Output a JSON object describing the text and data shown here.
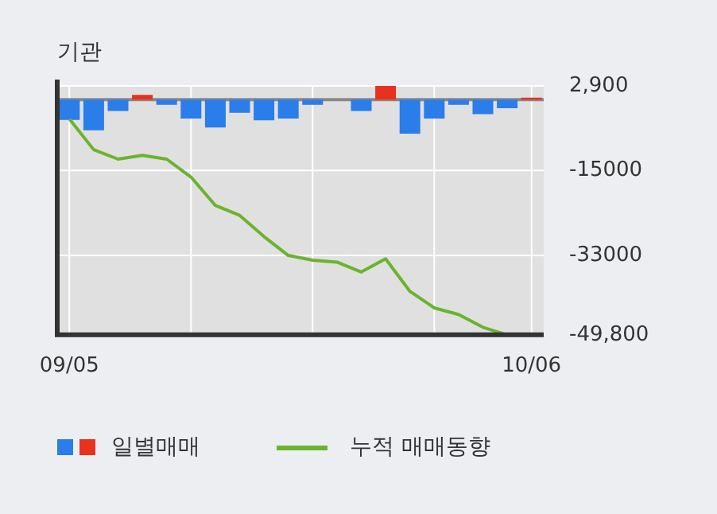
{
  "chart_data": {
    "type": "bar",
    "title": "기관",
    "categories": [
      "09/05",
      null,
      null,
      null,
      null,
      null,
      null,
      null,
      null,
      null,
      null,
      null,
      null,
      null,
      null,
      null,
      null,
      null,
      null,
      "10/06"
    ],
    "series": [
      {
        "name": "일별매매",
        "type": "bar",
        "colors": [
          "#2b7de9",
          "#2b7de9",
          "#2b7de9",
          "#e8321e",
          "#2b7de9",
          "#2b7de9",
          "#2b7de9",
          "#2b7de9",
          "#2b7de9",
          "#2b7de9",
          "#2b7de9",
          "#2b7de9",
          "#2b7de9",
          "#e8321e",
          "#2b7de9",
          "#2b7de9",
          "#2b7de9",
          "#2b7de9",
          "#2b7de9",
          "#e8321e"
        ],
        "values": [
          -4300,
          -6500,
          -2400,
          1000,
          -1100,
          -4000,
          -5900,
          -2800,
          -4400,
          -4000,
          -1100,
          0,
          -2400,
          2900,
          -7200,
          -4000,
          -1100,
          -3100,
          -1800,
          400
        ]
      },
      {
        "name": "누적 매매동향",
        "type": "line",
        "color": "#6ab42d",
        "values": [
          -4100,
          -10600,
          -12600,
          -11800,
          -12600,
          -16400,
          -22400,
          -24500,
          -29000,
          -33000,
          -34000,
          -34400,
          -36500,
          -33700,
          -40600,
          -44100,
          -45500,
          -48200,
          -49800,
          -49800
        ]
      }
    ],
    "ylim": [
      -49800,
      2900
    ],
    "yticks": [
      {
        "value": 2900,
        "label": "2,900"
      },
      -15000,
      -33000,
      {
        "value": -49800,
        "label": "-49,800"
      }
    ],
    "ref_lines": [
      {
        "axis": "y",
        "value": 0,
        "color": "#888888"
      }
    ],
    "grid": true,
    "legend": "bottom",
    "marker": "none",
    "line_style": "solid"
  }
}
